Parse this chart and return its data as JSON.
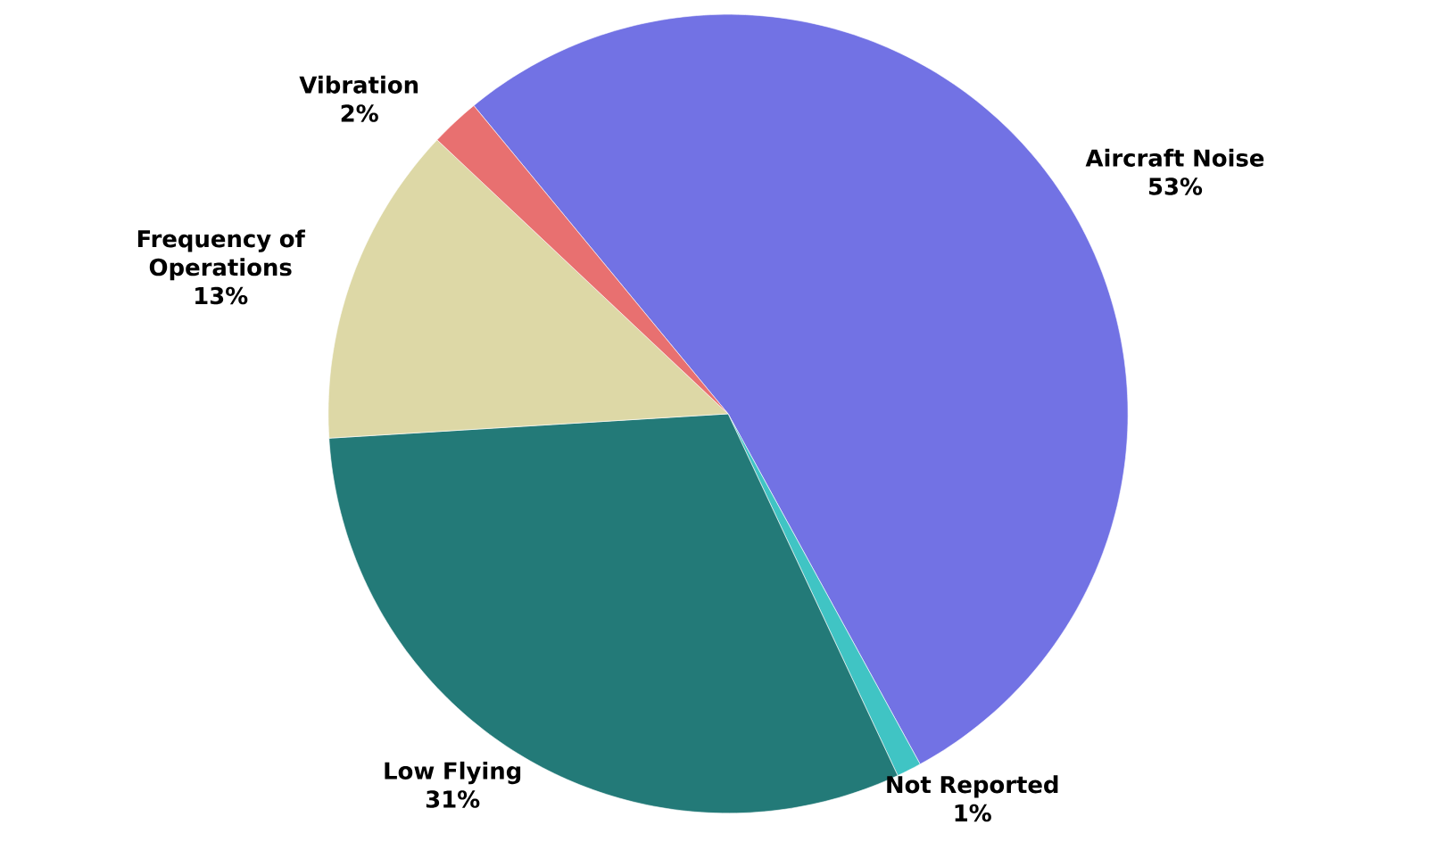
{
  "chart_data": {
    "type": "pie",
    "categories": [
      "Aircraft Noise",
      "Not Reported",
      "Low Flying",
      "Frequency of Operations",
      "Vibration"
    ],
    "values": [
      53,
      1,
      31,
      13,
      2
    ],
    "value_labels": [
      "53%",
      "1%",
      "31%",
      "13%",
      "2%"
    ],
    "colors": [
      "#7272e4",
      "#40c4c4",
      "#237a78",
      "#ddd8a6",
      "#e87070"
    ],
    "legend": false
  }
}
